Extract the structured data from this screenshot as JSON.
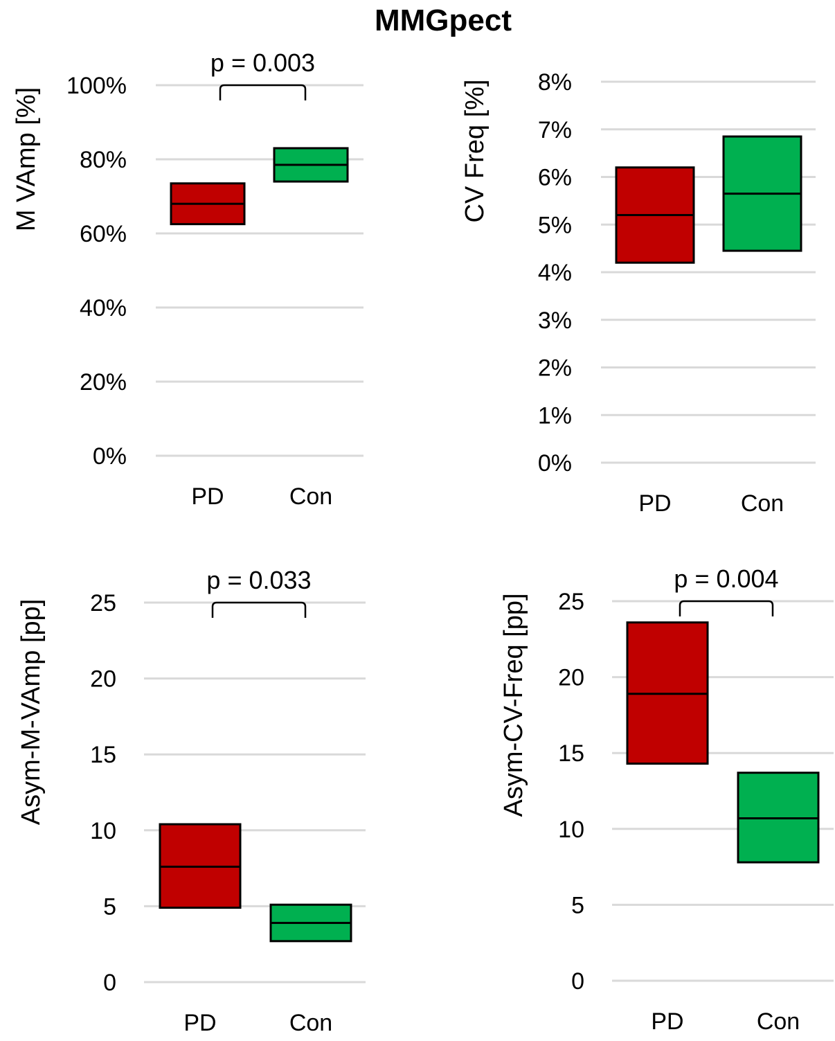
{
  "figure": {
    "title": "MMGpect"
  },
  "colors": {
    "PD": "#c00000",
    "Con": "#00b050"
  },
  "chart_data": [
    {
      "type": "box",
      "panel": "top-left",
      "ylabel": "M VAmp [%]",
      "categories": [
        "PD",
        "Con"
      ],
      "ylim": [
        0,
        100
      ],
      "yticks": [
        0,
        20,
        40,
        60,
        80,
        100
      ],
      "ytick_labels": [
        "0%",
        "20%",
        "40%",
        "60%",
        "80%",
        "100%"
      ],
      "boxes": [
        {
          "category": "PD",
          "low": 62.5,
          "median": 68,
          "high": 73.5
        },
        {
          "category": "Con",
          "low": 74,
          "median": 78.5,
          "high": 83
        }
      ],
      "significance": {
        "label": "p = 0.003",
        "y": 100
      }
    },
    {
      "type": "box",
      "panel": "top-right",
      "ylabel": "CV Freq [%]",
      "categories": [
        "PD",
        "Con"
      ],
      "ylim": [
        0,
        8
      ],
      "yticks": [
        0,
        1,
        2,
        3,
        4,
        5,
        6,
        7,
        8
      ],
      "ytick_labels": [
        "0%",
        "1%",
        "2%",
        "3%",
        "4%",
        "5%",
        "6%",
        "7%",
        "8%"
      ],
      "boxes": [
        {
          "category": "PD",
          "low": 4.2,
          "median": 5.2,
          "high": 6.2
        },
        {
          "category": "Con",
          "low": 4.45,
          "median": 5.65,
          "high": 6.85
        }
      ]
    },
    {
      "type": "box",
      "panel": "bottom-left",
      "ylabel": "Asym-M-VAmp [pp]",
      "categories": [
        "PD",
        "Con"
      ],
      "ylim": [
        0,
        25
      ],
      "yticks": [
        0,
        5,
        10,
        15,
        20,
        25
      ],
      "ytick_labels": [
        "0",
        "5",
        "10",
        "15",
        "20",
        "25"
      ],
      "boxes": [
        {
          "category": "PD",
          "low": 4.9,
          "median": 7.6,
          "high": 10.4
        },
        {
          "category": "Con",
          "low": 2.7,
          "median": 3.9,
          "high": 5.1
        }
      ],
      "significance": {
        "label": "p = 0.033",
        "y": 25
      }
    },
    {
      "type": "box",
      "panel": "bottom-right",
      "ylabel": "Asym-CV-Freq [pp]",
      "categories": [
        "PD",
        "Con"
      ],
      "ylim": [
        0,
        25
      ],
      "yticks": [
        0,
        5,
        10,
        15,
        20,
        25
      ],
      "ytick_labels": [
        "0",
        "5",
        "10",
        "15",
        "20",
        "25"
      ],
      "boxes": [
        {
          "category": "PD",
          "low": 14.3,
          "median": 18.9,
          "high": 23.6
        },
        {
          "category": "Con",
          "low": 7.8,
          "median": 10.7,
          "high": 13.7
        }
      ],
      "significance": {
        "label": "p = 0.004",
        "y": 25
      }
    }
  ]
}
